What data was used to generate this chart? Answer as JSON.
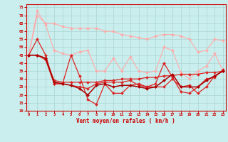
{
  "xlabel": "Vent moyen/en rafales ( km/h )",
  "xlim": [
    -0.3,
    23.3
  ],
  "ylim": [
    10,
    77
  ],
  "yticks": [
    10,
    15,
    20,
    25,
    30,
    35,
    40,
    45,
    50,
    55,
    60,
    65,
    70,
    75
  ],
  "xticks": [
    0,
    1,
    2,
    3,
    4,
    5,
    6,
    7,
    8,
    9,
    10,
    11,
    12,
    13,
    14,
    15,
    16,
    17,
    18,
    19,
    20,
    21,
    22,
    23
  ],
  "bg_color": "#caeeed",
  "grid_color": "#aad5d3",
  "series": [
    {
      "color": "#ffaaaa",
      "linewidth": 0.8,
      "marker": "D",
      "markersize": 2.0,
      "y": [
        45,
        70,
        65,
        65,
        63,
        62,
        62,
        62,
        62,
        60,
        60,
        58,
        57,
        56,
        55,
        57,
        58,
        58,
        57,
        55,
        47,
        48,
        55,
        54
      ]
    },
    {
      "color": "#ffaaaa",
      "linewidth": 0.8,
      "marker": "D",
      "markersize": 2.0,
      "y": [
        45,
        73,
        64,
        48,
        46,
        45,
        47,
        48,
        35,
        35,
        43,
        35,
        44,
        35,
        34,
        35,
        50,
        48,
        34,
        30,
        35,
        38,
        46,
        35
      ]
    },
    {
      "color": "#dd2222",
      "linewidth": 0.9,
      "marker": "D",
      "markersize": 2.0,
      "y": [
        45,
        55,
        45,
        27,
        27,
        45,
        32,
        17,
        14,
        27,
        21,
        21,
        26,
        27,
        25,
        27,
        40,
        31,
        22,
        21,
        25,
        30,
        31,
        36
      ]
    },
    {
      "color": "#dd2222",
      "linewidth": 0.9,
      "marker": "D",
      "markersize": 2.0,
      "y": [
        45,
        45,
        43,
        29,
        28,
        28,
        28,
        28,
        28,
        29,
        29,
        30,
        30,
        30,
        31,
        31,
        32,
        32,
        33,
        33,
        33,
        34,
        34,
        35
      ]
    },
    {
      "color": "#dd2222",
      "linewidth": 0.9,
      "marker": "D",
      "markersize": 2.0,
      "y": [
        45,
        45,
        42,
        27,
        27,
        26,
        25,
        24,
        27,
        28,
        28,
        28,
        29,
        26,
        25,
        25,
        25,
        30,
        25,
        26,
        21,
        25,
        32,
        35
      ]
    },
    {
      "color": "#aa0000",
      "linewidth": 1.1,
      "marker": "D",
      "markersize": 2.0,
      "y": [
        45,
        45,
        43,
        28,
        27,
        26,
        24,
        20,
        26,
        27,
        25,
        26,
        26,
        25,
        24,
        25,
        29,
        33,
        25,
        25,
        25,
        29,
        32,
        35
      ]
    }
  ]
}
